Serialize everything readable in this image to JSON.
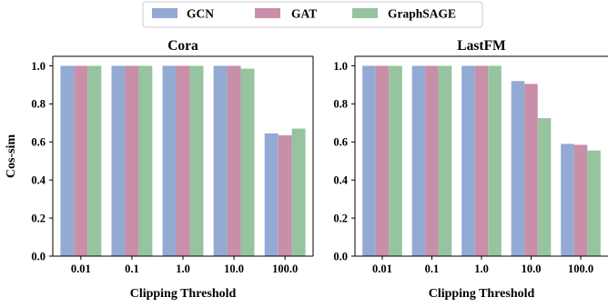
{
  "legend": {
    "entries": [
      {
        "label": "GCN",
        "color": "#92aad4"
      },
      {
        "label": "GAT",
        "color": "#c98fa8"
      },
      {
        "label": "GraphSAGE",
        "color": "#95c49e"
      }
    ]
  },
  "chart_data": [
    {
      "type": "bar",
      "title": "Cora",
      "xlabel": "Clipping Threshold",
      "ylabel": "Cos-sim",
      "categories": [
        "0.01",
        "0.1",
        "1.0",
        "10.0",
        "100.0"
      ],
      "ylim": [
        0,
        1.05
      ],
      "yticks": [
        "0.0",
        "0.2",
        "0.4",
        "0.6",
        "0.8",
        "1.0"
      ],
      "grid": false,
      "legend_position": "top-center",
      "series": [
        {
          "name": "GCN",
          "values": [
            1.0,
            1.0,
            1.0,
            1.0,
            0.645
          ]
        },
        {
          "name": "GAT",
          "values": [
            1.0,
            1.0,
            1.0,
            1.0,
            0.635
          ]
        },
        {
          "name": "GraphSAGE",
          "values": [
            1.0,
            1.0,
            1.0,
            0.985,
            0.67
          ]
        }
      ]
    },
    {
      "type": "bar",
      "title": "LastFM",
      "xlabel": "Clipping Threshold",
      "ylabel": "",
      "categories": [
        "0.01",
        "0.1",
        "1.0",
        "10.0",
        "100.0"
      ],
      "ylim": [
        0,
        1.05
      ],
      "yticks": [
        "0.0",
        "0.2",
        "0.4",
        "0.6",
        "0.8",
        "1.0"
      ],
      "grid": false,
      "legend_position": "top-center",
      "series": [
        {
          "name": "GCN",
          "values": [
            1.0,
            1.0,
            1.0,
            0.92,
            0.59
          ]
        },
        {
          "name": "GAT",
          "values": [
            1.0,
            1.0,
            1.0,
            0.905,
            0.585
          ]
        },
        {
          "name": "GraphSAGE",
          "values": [
            1.0,
            1.0,
            1.0,
            0.725,
            0.555
          ]
        }
      ]
    }
  ]
}
